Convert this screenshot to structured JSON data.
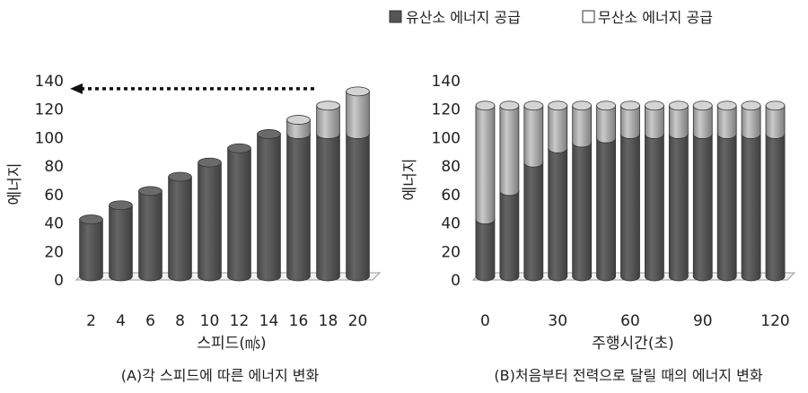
{
  "legend": {
    "items": [
      {
        "label": "유산소 에너지 공급",
        "color": "#555555"
      },
      {
        "label": "무산소 에너지 공급",
        "color": "#ffffff"
      }
    ]
  },
  "colors": {
    "aerobic": "#5a5a5a",
    "anaerobic": "#b4b4b4",
    "arrow": "#111111"
  },
  "chart_data": [
    {
      "type": "bar",
      "stacked": true,
      "caption": "(A)각 스피드에 따른 에너지 변화",
      "xlabel": "스피드(㎧)",
      "ylabel": "에너지",
      "ylim": [
        0,
        140
      ],
      "yticks": [
        "0",
        "20",
        "40",
        "60",
        "80",
        "100",
        "120",
        "140"
      ],
      "categories": [
        "2",
        "4",
        "6",
        "8",
        "10",
        "12",
        "14",
        "16",
        "18",
        "20"
      ],
      "series": [
        {
          "name": "유산소 에너지 공급",
          "values": [
            40,
            50,
            60,
            70,
            80,
            90,
            100,
            100,
            100,
            100
          ]
        },
        {
          "name": "무산소 에너지 공급",
          "values": [
            0,
            0,
            0,
            0,
            0,
            0,
            0,
            10,
            20,
            30
          ]
        }
      ],
      "annotation": "dotted arrow pointing left at 135"
    },
    {
      "type": "bar",
      "stacked": true,
      "caption": "(B)처음부터 전력으로 달릴 때의 에너지 변화",
      "xlabel": "주행시간(초)",
      "ylabel": "에너지",
      "ylim": [
        0,
        140
      ],
      "yticks": [
        "0",
        "20",
        "40",
        "60",
        "80",
        "100",
        "120",
        "140"
      ],
      "xticks": [
        "0",
        "30",
        "60",
        "90",
        "120"
      ],
      "categories": [
        "0",
        "10",
        "20",
        "30",
        "40",
        "50",
        "60",
        "70",
        "80",
        "90",
        "100",
        "110",
        "120"
      ],
      "series": [
        {
          "name": "유산소 에너지 공급",
          "values": [
            40,
            60,
            80,
            90,
            94,
            97,
            100,
            100,
            100,
            100,
            100,
            100,
            100
          ]
        },
        {
          "name": "무산소 에너지 공급",
          "values": [
            80,
            60,
            40,
            30,
            26,
            23,
            20,
            20,
            20,
            20,
            20,
            20,
            20
          ]
        }
      ]
    }
  ]
}
